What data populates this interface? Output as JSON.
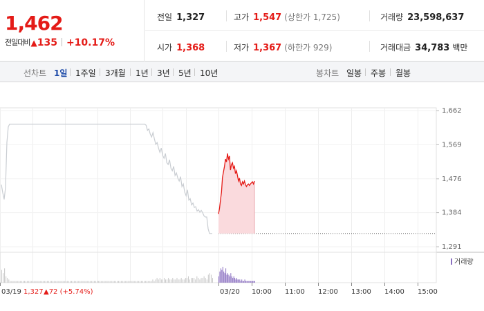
{
  "quote": {
    "price": "1,462",
    "change_label": "전일대비",
    "change_arrow": "▲",
    "change_value": "135",
    "change_pct": "+10.17%",
    "rows": [
      [
        {
          "label": "전일",
          "value": "1,327",
          "sub": "",
          "red": false
        },
        {
          "label": "고가",
          "value": "1,547",
          "sub": "(상한가 1,725)",
          "red": true
        },
        {
          "label": "거래량",
          "value": "23,598,637",
          "sub": "",
          "red": false
        }
      ],
      [
        {
          "label": "시가",
          "value": "1,368",
          "sub": "",
          "red": true
        },
        {
          "label": "저가",
          "value": "1,367",
          "sub": "(하한가 929)",
          "red": true
        },
        {
          "label": "거래대금",
          "value": "34,783",
          "sub": "백만",
          "red": false
        }
      ]
    ]
  },
  "toolbar": {
    "line_label": "선차트",
    "line_periods": [
      "1일",
      "1주일",
      "3개월",
      "1년",
      "3년",
      "5년",
      "10년"
    ],
    "active_period": "1일",
    "candle_label": "봉차트",
    "candle_periods": [
      "일봉",
      "주봉",
      "월봉"
    ]
  },
  "colors": {
    "up": "#e41b17",
    "prev_day_line": "#c9cdd2",
    "today_fill": "#fadadd",
    "volume_prev": "#c8c8c8",
    "volume_today": "#8a6fc1",
    "active_tab": "#1d4aa8"
  },
  "chart_data": {
    "type": "line",
    "y_ticks": [
      "1,662",
      "1,569",
      "1,476",
      "1,384",
      "1,291"
    ],
    "y_tick_values": [
      1662,
      1569,
      1476,
      1384,
      1291
    ],
    "ylim": [
      1291,
      1662
    ],
    "x_ticks": [
      "03/20",
      "10:00",
      "11:00",
      "12:00",
      "13:00",
      "14:00",
      "15:00"
    ],
    "prev_session_label": "03/19",
    "prev_close_text": "1,327",
    "prev_change_text": "▲72 (+5.74%)",
    "volume_legend": "거래량",
    "reference_close": 1327,
    "series": [
      {
        "session": "03/19",
        "values": [
          1460,
          1438,
          1420,
          1452,
          1575,
          1618,
          1625,
          1625,
          1625,
          1625,
          1625,
          1625,
          1625,
          1625,
          1625,
          1625,
          1625,
          1625,
          1625,
          1625,
          1625,
          1625,
          1625,
          1625,
          1625,
          1625,
          1625,
          1625,
          1625,
          1625,
          1625,
          1625,
          1625,
          1625,
          1625,
          1625,
          1625,
          1625,
          1625,
          1625,
          1625,
          1625,
          1625,
          1625,
          1625,
          1625,
          1625,
          1625,
          1625,
          1625,
          1625,
          1625,
          1625,
          1625,
          1625,
          1625,
          1625,
          1625,
          1625,
          1625,
          1625,
          1625,
          1625,
          1625,
          1625,
          1625,
          1625,
          1625,
          1625,
          1625,
          1625,
          1625,
          1625,
          1625,
          1625,
          1625,
          1625,
          1625,
          1625,
          1625,
          1625,
          1625,
          1625,
          1625,
          1625,
          1625,
          1625,
          1625,
          1625,
          1625,
          1625,
          1625,
          1625,
          1625,
          1625,
          1625,
          1625,
          1625,
          1625,
          1625,
          1625,
          1625,
          1625,
          1625,
          1625,
          1622,
          1608,
          1612,
          1598,
          1590,
          1602,
          1585,
          1570,
          1575,
          1560,
          1548,
          1560,
          1540,
          1532,
          1545,
          1520,
          1515,
          1528,
          1505,
          1498,
          1510,
          1485,
          1492,
          1478,
          1470,
          1482,
          1455,
          1462,
          1440,
          1430,
          1446,
          1418,
          1422,
          1405,
          1410,
          1398,
          1400,
          1388,
          1392,
          1385,
          1390,
          1384,
          1375,
          1372,
          1372,
          1340,
          1327,
          1327,
          1327
        ]
      },
      {
        "session": "03/20",
        "values": [
          1380,
          1395,
          1418,
          1440,
          1480,
          1495,
          1510,
          1530,
          1522,
          1545,
          1530,
          1538,
          1500,
          1515,
          1520,
          1505,
          1510,
          1490,
          1498,
          1485,
          1470,
          1478,
          1462,
          1458,
          1468,
          1462,
          1470,
          1460,
          1455,
          1460,
          1462,
          1458,
          1462,
          1465,
          1468,
          1462,
          1470
        ]
      }
    ],
    "volume": [
      {
        "session": "03/19",
        "values": [
          8,
          6,
          9,
          4,
          3,
          2,
          1,
          1,
          1,
          1,
          1,
          1,
          1,
          1,
          1,
          1,
          1,
          1,
          1,
          1,
          1,
          1,
          1,
          1,
          1,
          1,
          1,
          1,
          1,
          1,
          1,
          1,
          1,
          1,
          1,
          1,
          1,
          1,
          1,
          1,
          1,
          1,
          1,
          1,
          1,
          1,
          1,
          1,
          1,
          1,
          1,
          1,
          1,
          1,
          1,
          1,
          1,
          1,
          1,
          1,
          1,
          1,
          1,
          1,
          1,
          1,
          1,
          1,
          1,
          1,
          1,
          1,
          1,
          1,
          1,
          1,
          1,
          1,
          1,
          1,
          1,
          1,
          1,
          1,
          1,
          1,
          1,
          1,
          1,
          1,
          1,
          1,
          1,
          1,
          1,
          1,
          1,
          1,
          1,
          1,
          1,
          1,
          1,
          1,
          1,
          1,
          2,
          1,
          2,
          3,
          2,
          3,
          2,
          2,
          3,
          2,
          2,
          3,
          2,
          2,
          3,
          2,
          2,
          3,
          2,
          2,
          3,
          2,
          2,
          3,
          3,
          4,
          2,
          3,
          3,
          3,
          2,
          4,
          3,
          2,
          3,
          3,
          4,
          3,
          2,
          5,
          6,
          5,
          3
        ]
      },
      {
        "session": "03/20",
        "values": [
          4,
          7,
          9,
          8,
          10,
          7,
          6,
          9,
          5,
          6,
          5,
          4,
          6,
          4,
          3,
          4,
          3,
          2,
          3,
          2,
          2,
          2,
          1,
          2,
          1,
          1,
          2,
          1,
          1,
          1,
          1,
          1,
          1,
          1,
          1,
          1,
          1
        ]
      }
    ]
  }
}
